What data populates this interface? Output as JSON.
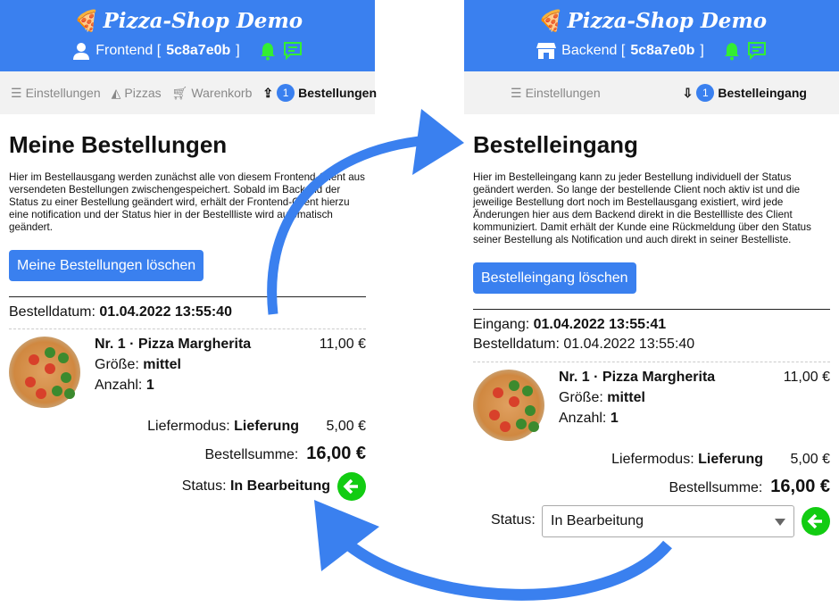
{
  "colors": {
    "brand": "#3a80ef",
    "status_ok": "#12cc12",
    "notify": "#33ee33"
  },
  "brand": "Pizza-Shop Demo",
  "frontend": {
    "client_label": "Frontend [",
    "client_id": "5c8a7e0b",
    "client_close": "]",
    "nav": [
      {
        "label": "Einstellungen",
        "icon": "sliders-icon"
      },
      {
        "label": "Pizzas",
        "icon": "pizza-icon"
      },
      {
        "label": "Warenkorb",
        "icon": "cart-icon"
      },
      {
        "label": "Bestellungen",
        "icon": "outbox-icon",
        "badge": "1"
      }
    ],
    "title": "Meine Bestellungen",
    "description": "Hier im Bestellausgang werden zunächst alle von diesem Frontend-Client aus versendeten Bestellungen zwischengespeichert. Sobald im Backend der Status zu einer Bestellung geändert wird, erhält der Frontend-Client hierzu eine notification und der Status hier in der Bestellliste wird automatisch geändert.",
    "clear_button": "Meine Bestellungen löschen",
    "order_date_label": "Bestelldatum:",
    "order_date": "01.04.2022 13:55:40",
    "item": {
      "title": "Nr. 1 · Pizza Margherita",
      "price": "11,00 €",
      "size_label": "Größe:",
      "size": "mittel",
      "qty_label": "Anzahl:",
      "qty": "1"
    },
    "delivery_label": "Liefermodus:",
    "delivery": "Lieferung",
    "delivery_price": "5,00 €",
    "total_label": "Bestellsumme:",
    "total": "16,00 €",
    "status_label": "Status:",
    "status": "In Bearbeitung"
  },
  "backend": {
    "client_label": "Backend [",
    "client_id": "5c8a7e0b",
    "client_close": "]",
    "nav": [
      {
        "label": "Einstellungen",
        "icon": "sliders-icon"
      },
      {
        "label": "Bestelleingang",
        "icon": "inbox-icon",
        "badge": "1"
      }
    ],
    "title": "Bestelleingang",
    "description": "Hier im Bestelleingang kann zu jeder Bestellung individuell der Status geändert werden. So lange der bestellende Client noch aktiv ist und die jeweilige Bestellung dort noch im Bestellausgang existiert, wird jede Änderungen hier aus dem Backend direkt in die Bestellliste des Client kommuniziert. Damit erhält der Kunde eine Rückmeldung über den Status seiner Bestellung als Notification und auch direkt in seiner Bestelliste.",
    "clear_button": "Bestelleingang löschen",
    "received_label": "Eingang:",
    "received": "01.04.2022 13:55:41",
    "order_date_label": "Bestelldatum:",
    "order_date": "01.04.2022 13:55:40",
    "item": {
      "title": "Nr. 1 · Pizza Margherita",
      "price": "11,00 €",
      "size_label": "Größe:",
      "size": "mittel",
      "qty_label": "Anzahl:",
      "qty": "1"
    },
    "delivery_label": "Liefermodus:",
    "delivery": "Lieferung",
    "delivery_price": "5,00 €",
    "total_label": "Bestellsumme:",
    "total": "16,00 €",
    "status_label": "Status:",
    "status": "In Bearbeitung"
  }
}
